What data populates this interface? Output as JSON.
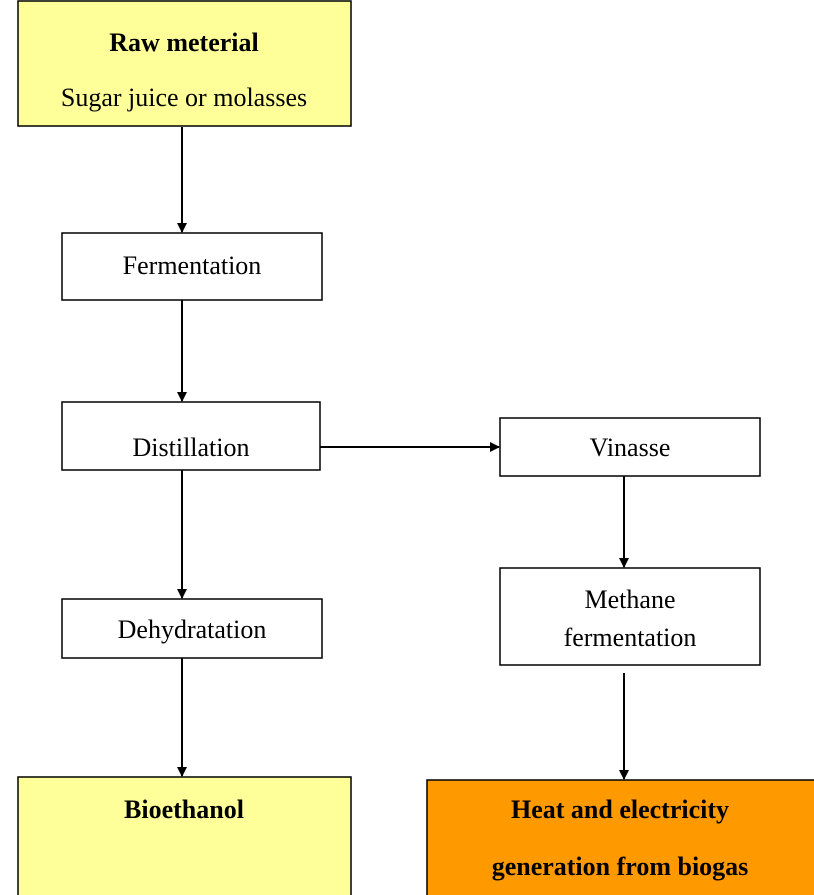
{
  "nodes": [
    {
      "lines": [
        "Raw meterial",
        "Sugar juice or molasses"
      ]
    },
    {
      "lines": [
        "Fermentation"
      ]
    },
    {
      "lines": [
        "Distillation"
      ]
    },
    {
      "lines": [
        "Vinasse"
      ]
    },
    {
      "lines": [
        "Methane",
        "fermentation"
      ]
    },
    {
      "lines": [
        "Dehydratation"
      ]
    },
    {
      "lines": [
        "Bioethanol"
      ]
    },
    {
      "lines": [
        "Heat and electricity",
        "generation from biogas"
      ]
    }
  ]
}
